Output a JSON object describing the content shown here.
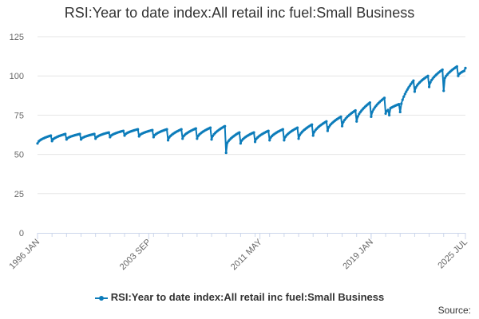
{
  "title": "RSI:Year to date index:All retail inc fuel:Small Business",
  "legend": {
    "label": "RSI:Year to date index:All retail inc fuel:Small Business"
  },
  "source": "Source:",
  "colors": {
    "series": "#0c7cba",
    "grid": "#e6e6e6",
    "axis": "#ccd6eb",
    "text": "#666666"
  },
  "chart_data": {
    "type": "line",
    "title": "RSI:Year to date index:All retail inc fuel:Small Business",
    "xlabel": "",
    "ylabel": "",
    "x_range": [
      "1996 JAN",
      "2025 JUL"
    ],
    "x_ticks": [
      "1996 JAN",
      "2003 SEP",
      "2011 MAY",
      "2019 JAN",
      "2025 JUL"
    ],
    "ylim": [
      0,
      125
    ],
    "y_ticks": [
      0,
      25,
      50,
      75,
      100,
      125
    ],
    "grid": true,
    "legend_position": "bottom",
    "series": [
      {
        "name": "RSI:Year to date index:All retail inc fuel:Small Business",
        "yearly_cycles": [
          {
            "year": 1996,
            "start": 57.0,
            "end": 62.0
          },
          {
            "year": 1997,
            "start": 58.5,
            "end": 63.0
          },
          {
            "year": 1998,
            "start": 59.5,
            "end": 63.0
          },
          {
            "year": 1999,
            "start": 59.5,
            "end": 63.0
          },
          {
            "year": 2000,
            "start": 60.0,
            "end": 64.0
          },
          {
            "year": 2001,
            "start": 61.0,
            "end": 65.0
          },
          {
            "year": 2002,
            "start": 62.0,
            "end": 66.0
          },
          {
            "year": 2003,
            "start": 61.5,
            "end": 65.5
          },
          {
            "year": 2004,
            "start": 61.0,
            "end": 66.0
          },
          {
            "year": 2005,
            "start": 59.0,
            "end": 66.0
          },
          {
            "year": 2006,
            "start": 60.0,
            "end": 66.5
          },
          {
            "year": 2007,
            "start": 60.0,
            "end": 67.0
          },
          {
            "year": 2008,
            "start": 59.5,
            "end": 68.0
          },
          {
            "year": 2009,
            "start": 55.0,
            "end": 64.0
          },
          {
            "year": 2010,
            "start": 57.0,
            "end": 64.0
          },
          {
            "year": 2011,
            "start": 58.0,
            "end": 65.0
          },
          {
            "year": 2012,
            "start": 59.0,
            "end": 66.0
          },
          {
            "year": 2013,
            "start": 59.0,
            "end": 67.0
          },
          {
            "year": 2014,
            "start": 60.0,
            "end": 69.0
          },
          {
            "year": 2015,
            "start": 62.0,
            "end": 71.0
          },
          {
            "year": 2016,
            "start": 65.0,
            "end": 74.0
          },
          {
            "year": 2017,
            "start": 68.0,
            "end": 78.0
          },
          {
            "year": 2018,
            "start": 71.0,
            "end": 83.0
          },
          {
            "year": 2019,
            "start": 74.0,
            "end": 86.0
          },
          {
            "year": 2020,
            "start": 76.0,
            "end": 82.0
          },
          {
            "year": 2021,
            "start": 77.0,
            "end": 97.0
          },
          {
            "year": 2022,
            "start": 90.0,
            "end": 100.0
          },
          {
            "year": 2023,
            "start": 93.0,
            "end": 104.0
          },
          {
            "year": 2024,
            "start": 96.0,
            "end": 106.0
          },
          {
            "year": 2025,
            "start": 100.0,
            "end": 105.0
          }
        ],
        "notable_points": [
          {
            "x": "2009 JAN",
            "y": 51.0
          },
          {
            "x": "2020 APR",
            "y": 75.0
          },
          {
            "x": "2024 JAN",
            "y": 90.5
          },
          {
            "x": "2025 JUL",
            "y": 105.0
          }
        ]
      }
    ]
  }
}
